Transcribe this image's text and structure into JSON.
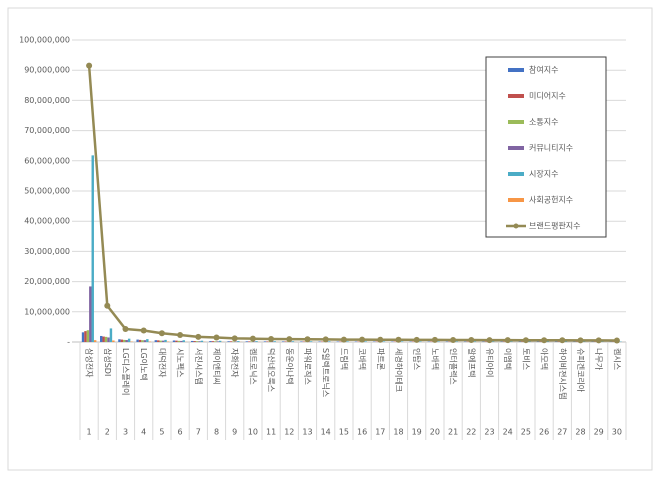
{
  "chart_data": {
    "type": "bar",
    "categories": [
      "삼성전자",
      "삼성SDI",
      "LG디스플레이",
      "LG이노텍",
      "대덕전자",
      "시노펙스",
      "서진시스템",
      "제이앤티씨",
      "자화전자",
      "켐트로닉스",
      "덕산네오룩스",
      "동운아나텍",
      "파워로직스",
      "S일렉트로닉스",
      "드림텍",
      "코바텍",
      "파트론",
      "세경하이테크",
      "인탑스",
      "노바텍",
      "인터플렉스",
      "알에프텍",
      "유티아이",
      "이엠텍",
      "토비스",
      "아모텍",
      "하이비젼시스템",
      "슈피겐코리아",
      "나무가",
      "켐시스"
    ],
    "ranks": [
      "1",
      "2",
      "3",
      "4",
      "5",
      "6",
      "7",
      "8",
      "9",
      "10",
      "11",
      "12",
      "13",
      "14",
      "15",
      "16",
      "17",
      "18",
      "19",
      "20",
      "21",
      "22",
      "23",
      "24",
      "25",
      "26",
      "27",
      "28",
      "29",
      "30"
    ],
    "series": [
      {
        "name": "참여지수",
        "color": "#4472c4",
        "values": [
          3200000,
          2000000,
          900000,
          800000,
          600000,
          500000,
          350000,
          300000,
          250000,
          220000,
          200000,
          190000,
          180000,
          170000,
          160000,
          155000,
          150000,
          145000,
          140000,
          140000,
          135000,
          130000,
          128000,
          124000,
          120000,
          116000,
          112000,
          108000,
          104000,
          100000
        ]
      },
      {
        "name": "미디어지수",
        "color": "#c0504d",
        "values": [
          3600000,
          1800000,
          800000,
          700000,
          550000,
          450000,
          320000,
          280000,
          230000,
          200000,
          185000,
          175000,
          165000,
          155000,
          150000,
          145000,
          140000,
          135000,
          130000,
          128000,
          125000,
          120000,
          118000,
          115000,
          110000,
          106000,
          102000,
          98000,
          95000,
          92000
        ]
      },
      {
        "name": "소통지수",
        "color": "#9bbb59",
        "values": [
          3900000,
          1700000,
          700000,
          600000,
          450000,
          380000,
          280000,
          240000,
          200000,
          180000,
          165000,
          155000,
          148000,
          140000,
          132000,
          128000,
          125000,
          120000,
          116000,
          112000,
          108000,
          104000,
          100000,
          96000,
          93000,
          90000,
          87000,
          84000,
          81000,
          78000
        ]
      },
      {
        "name": "커뮤니티지수",
        "color": "#8064a2",
        "values": [
          18400000,
          1500000,
          650000,
          600000,
          450000,
          350000,
          250000,
          220000,
          180000,
          170000,
          150000,
          140000,
          135000,
          130000,
          120000,
          118000,
          115000,
          110000,
          108000,
          105000,
          102000,
          99000,
          96000,
          93000,
          90000,
          87000,
          84000,
          81000,
          78000,
          75000
        ]
      },
      {
        "name": "시장지수",
        "color": "#4bacc6",
        "values": [
          61800000,
          4500000,
          1100000,
          950000,
          700000,
          580000,
          430000,
          400000,
          300000,
          280000,
          260000,
          250000,
          235000,
          225000,
          215000,
          210000,
          205000,
          200000,
          195000,
          190000,
          185000,
          180000,
          175000,
          170000,
          165000,
          160000,
          155000,
          150000,
          145000,
          140000
        ]
      },
      {
        "name": "사회공헌지수",
        "color": "#f79646",
        "values": [
          600000,
          500000,
          150000,
          150000,
          150000,
          40000,
          70000,
          60000,
          40000,
          50000,
          40000,
          40000,
          37000,
          30000,
          23000,
          24000,
          25000,
          30000,
          31000,
          25000,
          25000,
          27000,
          23000,
          22000,
          22000,
          21000,
          20000,
          19000,
          17000,
          15000
        ]
      },
      {
        "name": "브랜드평판지수",
        "color": "#948a54",
        "type": "line",
        "values": [
          91500000,
          12000000,
          4300000,
          3800000,
          2900000,
          2300000,
          1700000,
          1500000,
          1200000,
          1100000,
          1000000,
          950000,
          900000,
          850000,
          800000,
          780000,
          760000,
          740000,
          720000,
          700000,
          680000,
          660000,
          640000,
          620000,
          600000,
          580000,
          560000,
          540000,
          520000,
          500000
        ]
      }
    ],
    "ylim": [
      0,
      100000000
    ],
    "yticks": [
      {
        "value": 0,
        "label": "-"
      },
      {
        "value": 10000000,
        "label": "10,000,000"
      },
      {
        "value": 20000000,
        "label": "20,000,000"
      },
      {
        "value": 30000000,
        "label": "30,000,000"
      },
      {
        "value": 40000000,
        "label": "40,000,000"
      },
      {
        "value": 50000000,
        "label": "50,000,000"
      },
      {
        "value": 60000000,
        "label": "60,000,000"
      },
      {
        "value": 70000000,
        "label": "70,000,000"
      },
      {
        "value": 80000000,
        "label": "80,000,000"
      },
      {
        "value": 90000000,
        "label": "90,000,000"
      },
      {
        "value": 100000000,
        "label": "100,000,000"
      }
    ],
    "grid": true,
    "legend": "upper-right"
  }
}
